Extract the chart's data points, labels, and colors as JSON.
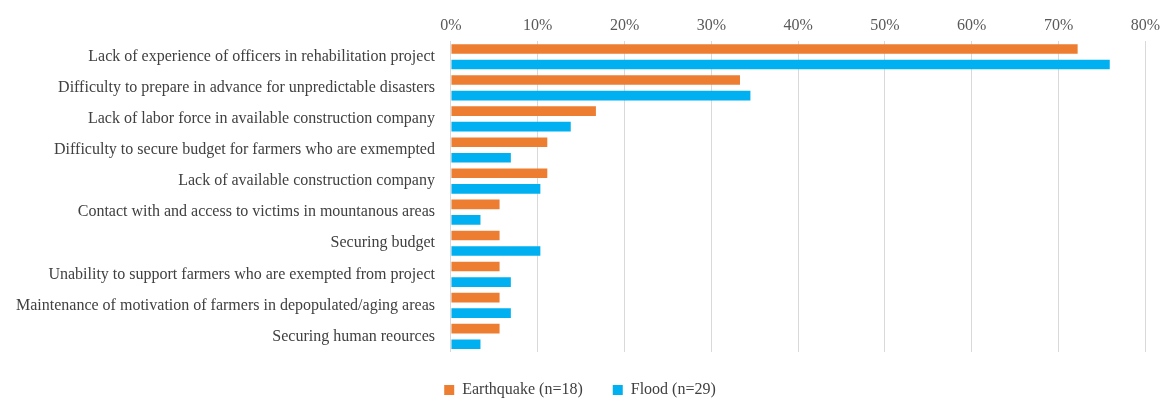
{
  "chart_data": {
    "type": "bar",
    "orientation": "horizontal",
    "categories": [
      "Lack of experience of officers in rehabilitation project",
      "Difficulty to prepare in advance for unpredictable disasters",
      "Lack of labor force in available construction company",
      "Difficulty to secure budget for farmers who are exmempted",
      "Lack of available construction company",
      "Contact with and access to victims in mountanous areas",
      "Securing budget",
      "Unability to support farmers who are exempted from project",
      "Maintenance of motivation of farmers in depopulated/aging areas",
      "Securing human reources"
    ],
    "series": [
      {
        "name": "Earthquake (n=18)",
        "color": "#ed7d31",
        "values": [
          72.2,
          33.3,
          16.7,
          11.1,
          11.1,
          5.6,
          5.6,
          5.6,
          5.6,
          5.6
        ]
      },
      {
        "name": "Flood (n=29)",
        "color": "#00b0f0",
        "values": [
          75.9,
          34.5,
          13.8,
          6.9,
          10.3,
          3.4,
          10.3,
          6.9,
          6.9,
          3.4
        ]
      }
    ],
    "xlim": [
      0,
      80
    ],
    "xticks": [
      {
        "value": 0,
        "label": "0%"
      },
      {
        "value": 10,
        "label": "10%"
      },
      {
        "value": 20,
        "label": "20%"
      },
      {
        "value": 30,
        "label": "30%"
      },
      {
        "value": 40,
        "label": "40%"
      },
      {
        "value": 50,
        "label": "50%"
      },
      {
        "value": 60,
        "label": "60%"
      },
      {
        "value": 70,
        "label": "70%"
      },
      {
        "value": 80,
        "label": "80%"
      }
    ],
    "grid": "x",
    "legend": "bottom"
  }
}
